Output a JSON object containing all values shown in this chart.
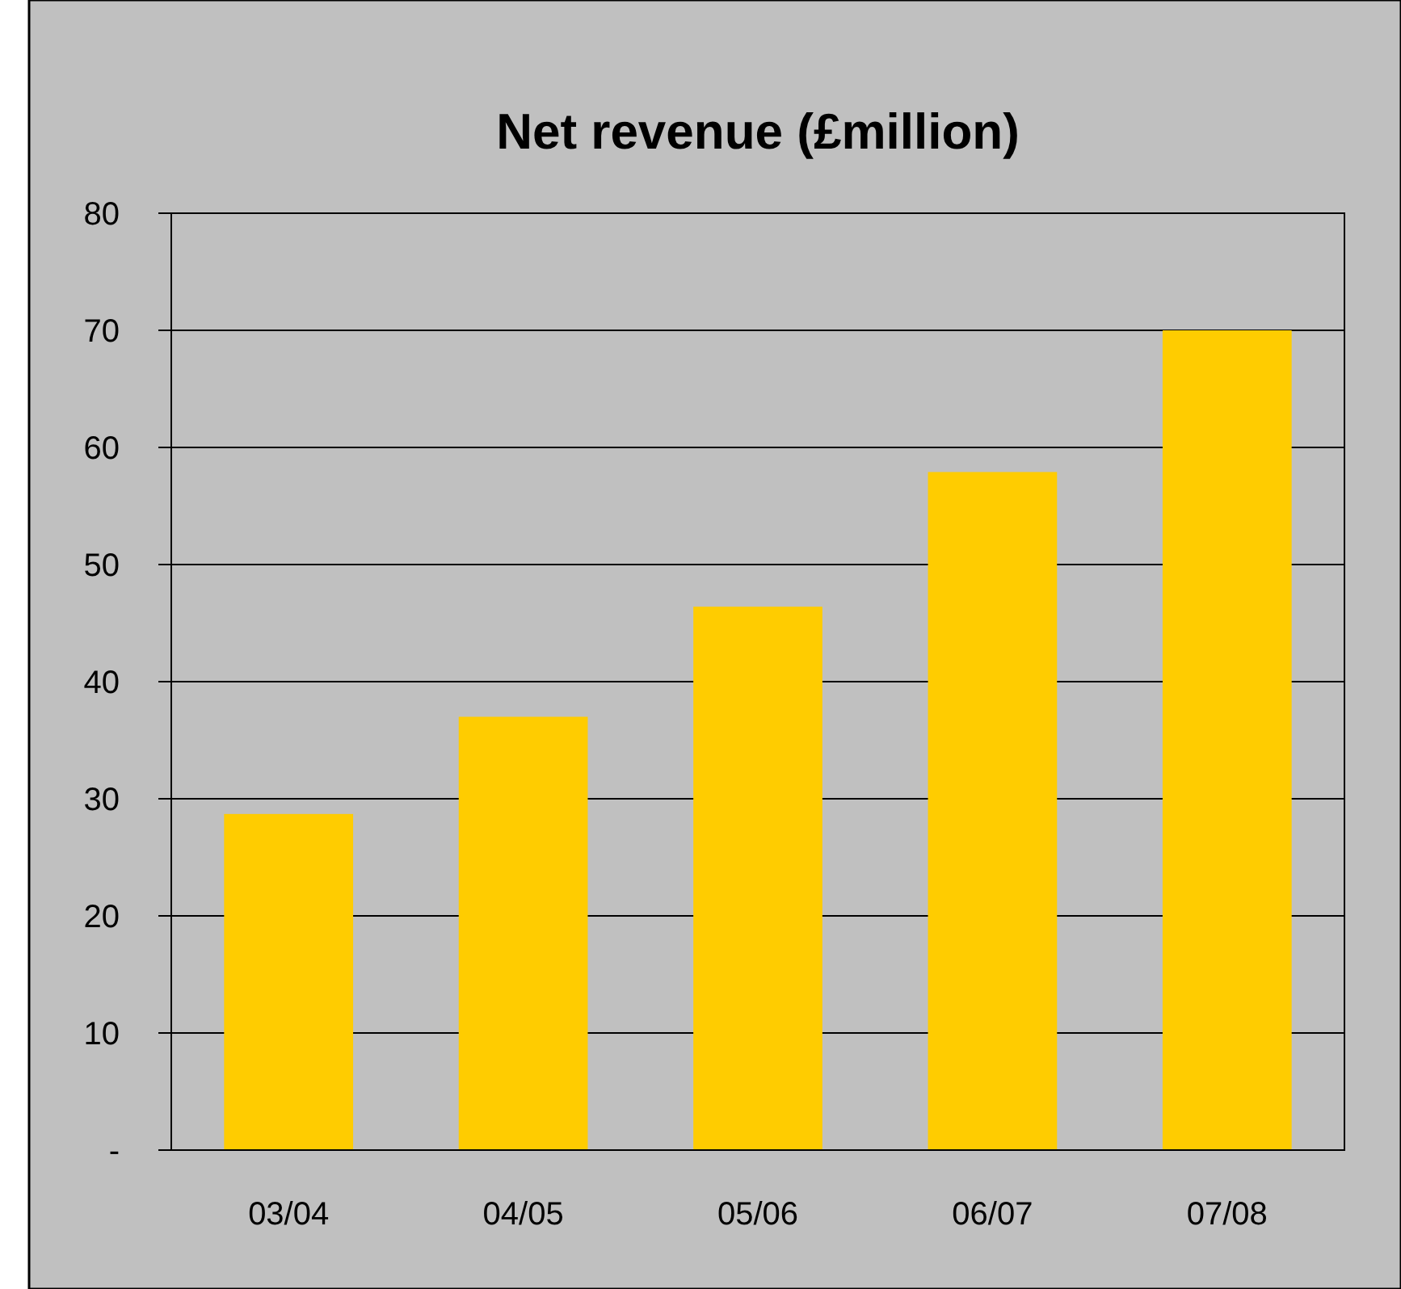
{
  "chart_data": {
    "type": "bar",
    "title": "Net revenue (£million)",
    "categories": [
      "03/04",
      "04/05",
      "05/06",
      "06/07",
      "07/08"
    ],
    "values": [
      28.7,
      37.0,
      46.4,
      57.9,
      70.0
    ],
    "color": "#ffcc00",
    "ylim": [
      0,
      80
    ],
    "yticks": [
      {
        "value": 0,
        "label": "-"
      },
      10,
      20,
      30,
      40,
      50,
      60,
      70,
      80
    ],
    "grid": "y"
  }
}
